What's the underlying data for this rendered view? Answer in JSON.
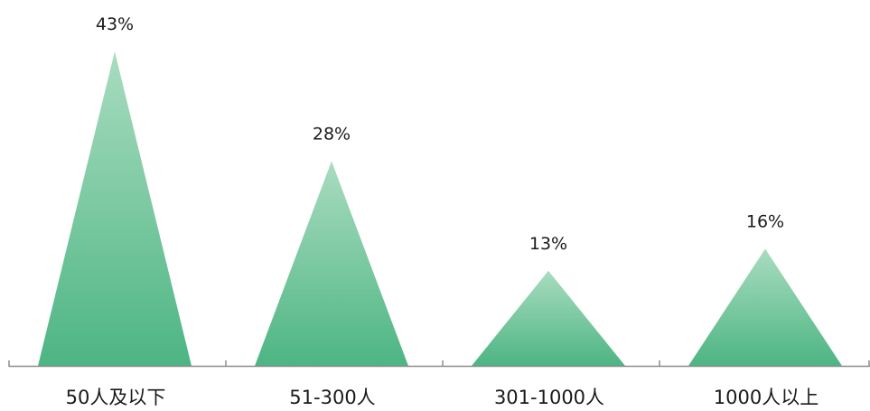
{
  "chart_data": {
    "type": "bar",
    "shape": "triangle",
    "categories": [
      "50人及以下",
      "51-300人",
      "301-1000人",
      "1000人以上"
    ],
    "values": [
      43,
      28,
      13,
      16
    ],
    "value_labels": [
      "43%",
      "28%",
      "13%",
      "16%"
    ],
    "title": "",
    "xlabel": "",
    "ylabel": "",
    "ylim": [
      0,
      45
    ],
    "grid": false,
    "legend": "none",
    "colors": {
      "fill_top": "#a9dcc0",
      "fill_bottom": "#4db583",
      "axis": "#8c8c8c",
      "text": "#1a1a1a"
    }
  }
}
